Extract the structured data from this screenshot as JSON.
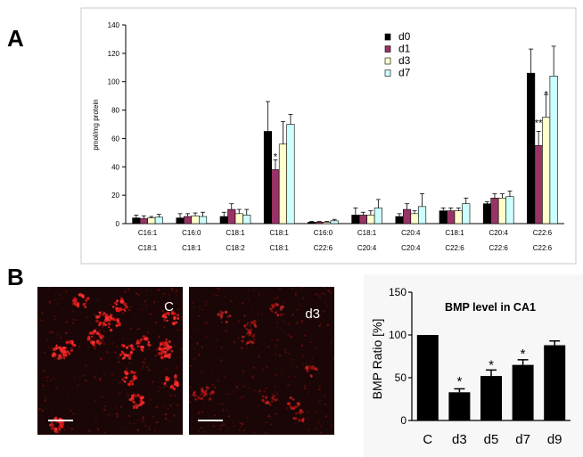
{
  "panels": {
    "a_label": "A",
    "b_label": "B"
  },
  "chart_data": [
    {
      "type": "bar",
      "ylabel": "pmol/mg protein",
      "ylim": [
        0,
        140
      ],
      "yticks": [
        0,
        20,
        40,
        60,
        80,
        100,
        120,
        140
      ],
      "categories": [
        [
          "C16:1",
          "C18:1"
        ],
        [
          "C16:0",
          "C18:1"
        ],
        [
          "C18:1",
          "C18:2"
        ],
        [
          "C18:1",
          "C18:1"
        ],
        [
          "C16:0",
          "C22:6"
        ],
        [
          "C18:1",
          "C20:4"
        ],
        [
          "C20:4",
          "C20:4"
        ],
        [
          "C18:1",
          "C22:6"
        ],
        [
          "C20:4",
          "C22:6"
        ],
        [
          "C22:6",
          "C22:6"
        ]
      ],
      "series": [
        {
          "name": "d0",
          "color": "#000000",
          "values": [
            4,
            4,
            5,
            65,
            1,
            6,
            5,
            9,
            14,
            106
          ],
          "errors": [
            2,
            3,
            3,
            21,
            0.5,
            5,
            2,
            2,
            1.5,
            17
          ]
        },
        {
          "name": "d1",
          "color": "#993366",
          "values": [
            3.5,
            5,
            10,
            38,
            1,
            6,
            10,
            9,
            18,
            55
          ],
          "errors": [
            2,
            2,
            4,
            7,
            0.5,
            2,
            4,
            2,
            3,
            10
          ]
        },
        {
          "name": "d3",
          "color": "#FFFFCC",
          "values": [
            4,
            5.5,
            7,
            56,
            1,
            6,
            7,
            9,
            18,
            75
          ],
          "errors": [
            1,
            2,
            3,
            16,
            0.5,
            3,
            2,
            2,
            3,
            16
          ]
        },
        {
          "name": "d7",
          "color": "#CCFFFF",
          "values": [
            4.5,
            5,
            6,
            70,
            2,
            11,
            12,
            14,
            19,
            104
          ],
          "errors": [
            2,
            3,
            4,
            7,
            1,
            6,
            9,
            4,
            4,
            21
          ]
        }
      ],
      "annotations": [
        {
          "text": "*",
          "category_index": 3,
          "series": "d1",
          "y": 48
        },
        {
          "text": "**",
          "category_index": 9,
          "series": "d1",
          "y": 72
        },
        {
          "text": "*",
          "category_index": 9,
          "series": "d3",
          "y": 92
        }
      ],
      "legend_position": "top-right",
      "grid": false
    },
    {
      "type": "bar",
      "title": "BMP level  in  CA1",
      "ylabel": "BMP Ratio [%]",
      "ylim": [
        0,
        150
      ],
      "yticks": [
        0,
        50,
        100,
        150
      ],
      "categories": [
        "C",
        "d3",
        "d5",
        "d7",
        "d9"
      ],
      "series": [
        {
          "color": "#000000",
          "values": [
            100,
            33,
            52,
            65,
            88
          ],
          "errors": [
            0,
            4,
            7,
            6,
            5
          ]
        }
      ],
      "annotations": [
        {
          "text": "*",
          "category_index": 1,
          "y": 47
        },
        {
          "text": "*",
          "category_index": 2,
          "y": 66
        },
        {
          "text": "*",
          "category_index": 3,
          "y": 79
        }
      ],
      "grid": false
    }
  ],
  "micrographs": [
    {
      "label": "C"
    },
    {
      "label": "d3"
    }
  ]
}
